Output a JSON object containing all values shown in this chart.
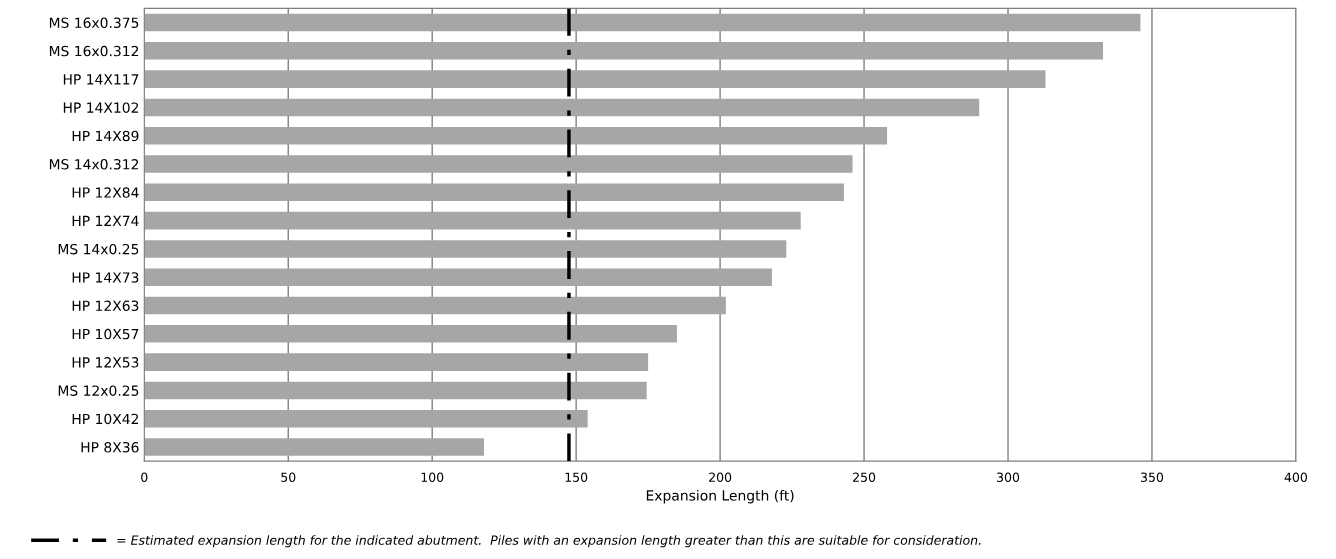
{
  "chart_data": {
    "type": "bar",
    "orientation": "horizontal",
    "xlabel": "Expansion Length (ft)",
    "categories": [
      "MS 16x0.375",
      "MS 16x0.312",
      "HP 14X117",
      "HP 14X102",
      "HP 14X89",
      "MS 14x0.312",
      "HP 12X84",
      "HP 12X74",
      "MS 14x0.25",
      "HP 14X73",
      "HP 12X63",
      "HP 10X57",
      "HP 12X53",
      "MS 12x0.25",
      "HP 10X42",
      "HP 8X36"
    ],
    "values": [
      346,
      333,
      313,
      290,
      258,
      246,
      243,
      228,
      223,
      218,
      202,
      185,
      175,
      174.5,
      154,
      118
    ],
    "color": "#a6a6a6",
    "xlim": [
      0,
      400
    ],
    "xticks": [
      0,
      50,
      100,
      150,
      200,
      250,
      300,
      350,
      400
    ],
    "grid": "x",
    "legend": "bottom",
    "ref_lines": [
      {
        "axis": "x",
        "value": 147.5,
        "label": "= Estimated expansion length for the indicated abutment.  Piles with an expansion length greater than this are suitable for consideration.",
        "color": "#000000",
        "line_style": "dashdot"
      }
    ]
  }
}
